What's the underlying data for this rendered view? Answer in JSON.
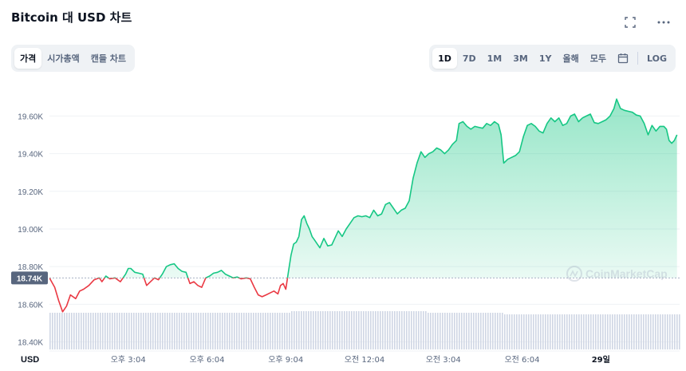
{
  "header": {
    "title": "Bitcoin 대 USD 차트",
    "fullscreen_icon": "expand-icon",
    "more_icon": "more-horizontal-icon"
  },
  "tabs_left": [
    {
      "label": "가격",
      "active": true
    },
    {
      "label": "시가총액",
      "active": false
    },
    {
      "label": "캔들 차트",
      "active": false
    }
  ],
  "tabs_right": [
    {
      "label": "1D",
      "active": true
    },
    {
      "label": "7D",
      "active": false
    },
    {
      "label": "1M",
      "active": false
    },
    {
      "label": "3M",
      "active": false
    },
    {
      "label": "1Y",
      "active": false
    },
    {
      "label": "올해",
      "active": false
    },
    {
      "label": "모두",
      "active": false
    }
  ],
  "calendar_icon": "calendar-icon",
  "log_label": "LOG",
  "watermark": "CoinMarketCap",
  "colors": {
    "up": "#16c784",
    "down": "#ea3943",
    "fill_top": "#16c784",
    "volume": "#cfd6e4",
    "text_muted": "#58667e"
  },
  "chart_data": {
    "type": "area",
    "currency_label": "USD",
    "reference_price": 18740,
    "reference_label": "18.74K",
    "ylim": [
      18360,
      19750
    ],
    "y_ticks": [
      18400,
      18600,
      18800,
      19000,
      19200,
      19400,
      19600
    ],
    "y_tick_labels": [
      "18.40K",
      "18.60K",
      "18.80K",
      "19.00K",
      "19.20K",
      "19.40K",
      "19.60K"
    ],
    "x_tick_labels": [
      "오후 3:04",
      "오후 6:04",
      "오후 9:04",
      "오전 12:04",
      "오전 3:04",
      "오전 6:04",
      "29일"
    ],
    "x_tick_hours": [
      3.0,
      6.0,
      9.0,
      12.0,
      15.0,
      18.0,
      21.0
    ],
    "x_range_hours": [
      0,
      24
    ],
    "series": [
      {
        "points": [
          [
            0.0,
            18740
          ],
          [
            0.2,
            18690
          ],
          [
            0.35,
            18620
          ],
          [
            0.5,
            18560
          ],
          [
            0.65,
            18590
          ],
          [
            0.8,
            18650
          ],
          [
            1.0,
            18630
          ],
          [
            1.15,
            18670
          ],
          [
            1.3,
            18680
          ],
          [
            1.5,
            18700
          ],
          [
            1.7,
            18730
          ],
          [
            1.9,
            18740
          ],
          [
            2.0,
            18720
          ],
          [
            2.15,
            18750
          ],
          [
            2.3,
            18735
          ],
          [
            2.5,
            18740
          ],
          [
            2.7,
            18720
          ],
          [
            2.9,
            18760
          ],
          [
            3.0,
            18790
          ],
          [
            3.1,
            18790
          ],
          [
            3.25,
            18770
          ],
          [
            3.4,
            18765
          ],
          [
            3.55,
            18760
          ],
          [
            3.7,
            18700
          ],
          [
            3.85,
            18720
          ],
          [
            4.0,
            18740
          ],
          [
            4.15,
            18730
          ],
          [
            4.3,
            18760
          ],
          [
            4.45,
            18800
          ],
          [
            4.6,
            18810
          ],
          [
            4.75,
            18815
          ],
          [
            4.9,
            18790
          ],
          [
            5.05,
            18775
          ],
          [
            5.2,
            18770
          ],
          [
            5.35,
            18710
          ],
          [
            5.5,
            18720
          ],
          [
            5.65,
            18700
          ],
          [
            5.8,
            18690
          ],
          [
            5.95,
            18740
          ],
          [
            6.1,
            18750
          ],
          [
            6.25,
            18765
          ],
          [
            6.4,
            18770
          ],
          [
            6.55,
            18780
          ],
          [
            6.7,
            18760
          ],
          [
            6.85,
            18750
          ],
          [
            7.0,
            18740
          ],
          [
            7.15,
            18745
          ],
          [
            7.3,
            18735
          ],
          [
            7.5,
            18740
          ],
          [
            7.65,
            18735
          ],
          [
            7.8,
            18690
          ],
          [
            7.95,
            18650
          ],
          [
            8.1,
            18640
          ],
          [
            8.25,
            18650
          ],
          [
            8.4,
            18660
          ],
          [
            8.55,
            18670
          ],
          [
            8.7,
            18655
          ],
          [
            8.8,
            18700
          ],
          [
            8.9,
            18710
          ],
          [
            9.0,
            18680
          ],
          [
            9.1,
            18770
          ],
          [
            9.2,
            18860
          ],
          [
            9.3,
            18920
          ],
          [
            9.4,
            18930
          ],
          [
            9.5,
            18960
          ],
          [
            9.6,
            19050
          ],
          [
            9.7,
            19070
          ],
          [
            9.8,
            19030
          ],
          [
            9.9,
            19000
          ],
          [
            10.0,
            18960
          ],
          [
            10.1,
            18940
          ],
          [
            10.2,
            18920
          ],
          [
            10.3,
            18900
          ],
          [
            10.45,
            18950
          ],
          [
            10.6,
            18910
          ],
          [
            10.75,
            18915
          ],
          [
            10.9,
            18960
          ],
          [
            11.0,
            18990
          ],
          [
            11.15,
            18960
          ],
          [
            11.3,
            19000
          ],
          [
            11.45,
            19030
          ],
          [
            11.6,
            19060
          ],
          [
            11.75,
            19070
          ],
          [
            11.9,
            19065
          ],
          [
            12.05,
            19070
          ],
          [
            12.2,
            19060
          ],
          [
            12.35,
            19100
          ],
          [
            12.5,
            19070
          ],
          [
            12.65,
            19080
          ],
          [
            12.8,
            19130
          ],
          [
            12.95,
            19140
          ],
          [
            13.1,
            19110
          ],
          [
            13.25,
            19080
          ],
          [
            13.4,
            19100
          ],
          [
            13.55,
            19110
          ],
          [
            13.7,
            19150
          ],
          [
            13.85,
            19270
          ],
          [
            14.0,
            19350
          ],
          [
            14.15,
            19410
          ],
          [
            14.3,
            19380
          ],
          [
            14.45,
            19400
          ],
          [
            14.6,
            19410
          ],
          [
            14.75,
            19430
          ],
          [
            14.9,
            19420
          ],
          [
            15.05,
            19400
          ],
          [
            15.2,
            19420
          ],
          [
            15.35,
            19450
          ],
          [
            15.5,
            19470
          ],
          [
            15.6,
            19560
          ],
          [
            15.75,
            19570
          ],
          [
            15.9,
            19545
          ],
          [
            16.05,
            19530
          ],
          [
            16.2,
            19545
          ],
          [
            16.35,
            19540
          ],
          [
            16.5,
            19535
          ],
          [
            16.65,
            19560
          ],
          [
            16.8,
            19550
          ],
          [
            16.95,
            19570
          ],
          [
            17.1,
            19555
          ],
          [
            17.2,
            19500
          ],
          [
            17.3,
            19350
          ],
          [
            17.45,
            19370
          ],
          [
            17.6,
            19380
          ],
          [
            17.75,
            19390
          ],
          [
            17.9,
            19410
          ],
          [
            18.05,
            19490
          ],
          [
            18.2,
            19550
          ],
          [
            18.35,
            19560
          ],
          [
            18.5,
            19545
          ],
          [
            18.65,
            19520
          ],
          [
            18.8,
            19510
          ],
          [
            18.95,
            19560
          ],
          [
            19.1,
            19590
          ],
          [
            19.25,
            19570
          ],
          [
            19.4,
            19590
          ],
          [
            19.55,
            19550
          ],
          [
            19.7,
            19560
          ],
          [
            19.85,
            19600
          ],
          [
            20.0,
            19610
          ],
          [
            20.15,
            19570
          ],
          [
            20.3,
            19590
          ],
          [
            20.45,
            19600
          ],
          [
            20.6,
            19610
          ],
          [
            20.75,
            19565
          ],
          [
            20.9,
            19560
          ],
          [
            21.05,
            19570
          ],
          [
            21.2,
            19580
          ],
          [
            21.35,
            19600
          ],
          [
            21.5,
            19640
          ],
          [
            21.6,
            19690
          ],
          [
            21.75,
            19640
          ],
          [
            21.9,
            19630
          ],
          [
            22.05,
            19625
          ],
          [
            22.2,
            19620
          ],
          [
            22.35,
            19605
          ],
          [
            22.5,
            19600
          ],
          [
            22.65,
            19560
          ],
          [
            22.8,
            19500
          ],
          [
            22.95,
            19550
          ],
          [
            23.1,
            19520
          ],
          [
            23.25,
            19545
          ],
          [
            23.4,
            19545
          ],
          [
            23.5,
            19530
          ],
          [
            23.6,
            19470
          ],
          [
            23.7,
            19455
          ],
          [
            23.8,
            19470
          ],
          [
            23.9,
            19500
          ]
        ]
      }
    ]
  }
}
